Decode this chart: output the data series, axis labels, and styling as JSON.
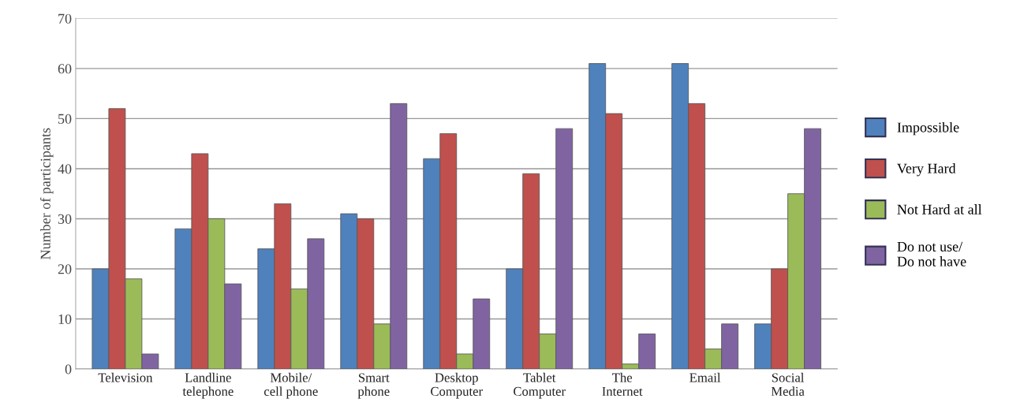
{
  "chart_data": {
    "type": "bar",
    "ylabel": "Number of participants",
    "categories": [
      "Television",
      "Landline\ntelephone",
      "Mobile/\ncell phone",
      "Smart\nphone",
      "Desktop\nComputer",
      "Tablet\nComputer",
      "The\nInternet",
      "Email",
      "Social\nMedia"
    ],
    "series": [
      {
        "name": "Impossible",
        "color": "#4f81bd",
        "values": [
          20,
          28,
          24,
          31,
          42,
          20,
          61,
          61,
          9
        ]
      },
      {
        "name": "Very Hard",
        "color": "#c0504d",
        "values": [
          52,
          43,
          33,
          30,
          47,
          39,
          51,
          53,
          20
        ]
      },
      {
        "name": "Not Hard at all",
        "color": "#9bbb59",
        "values": [
          18,
          30,
          16,
          9,
          3,
          7,
          1,
          4,
          35
        ]
      },
      {
        "name": "Do not use/\nDo not have",
        "color": "#8064a2",
        "values": [
          3,
          17,
          26,
          53,
          14,
          48,
          7,
          9,
          48
        ]
      }
    ],
    "ylim": [
      0,
      70
    ],
    "yticks": [
      0,
      10,
      20,
      30,
      40,
      50,
      60,
      70
    ],
    "grid": "y",
    "legend": "right"
  }
}
